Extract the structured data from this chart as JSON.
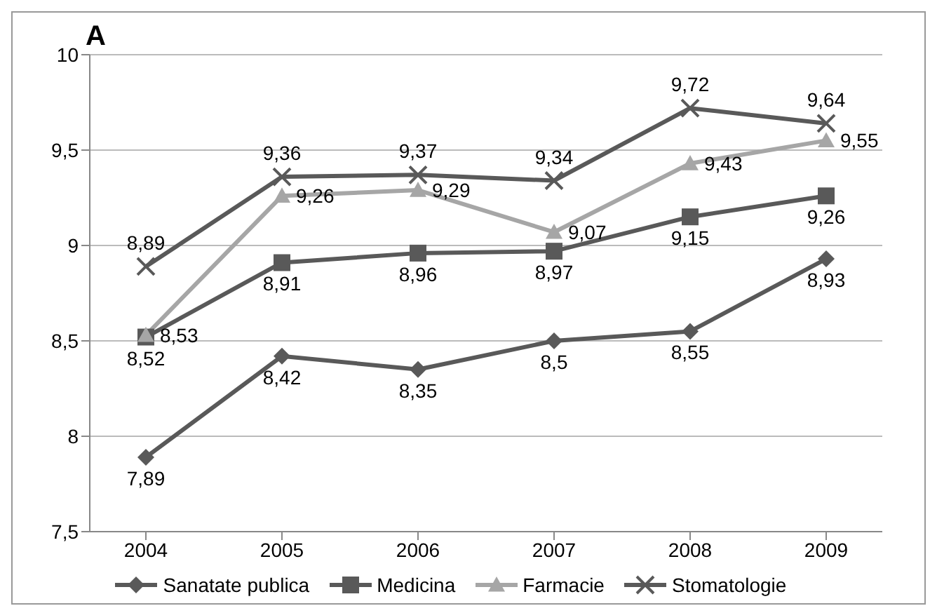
{
  "chart_data": {
    "type": "line",
    "title": "A",
    "categories": [
      "2004",
      "2005",
      "2006",
      "2007",
      "2008",
      "2009"
    ],
    "series": [
      {
        "name": "Sanatate publica",
        "color": "#595959",
        "marker": "diamond",
        "values": [
          7.89,
          8.42,
          8.35,
          8.5,
          8.55,
          8.93
        ],
        "value_labels": [
          "7,89",
          "8,42",
          "8,35",
          "8,5",
          "8,55",
          "8,93"
        ]
      },
      {
        "name": "Medicina",
        "color": "#595959",
        "marker": "square",
        "values": [
          8.52,
          8.91,
          8.96,
          8.97,
          9.15,
          9.26
        ],
        "value_labels": [
          "8,52",
          "8,91",
          "8,96",
          "8,97",
          "9,15",
          "9,26"
        ]
      },
      {
        "name": "Farmacie",
        "color": "#a6a6a6",
        "marker": "triangle",
        "values": [
          8.53,
          9.26,
          9.29,
          9.07,
          9.43,
          9.55
        ],
        "value_labels": [
          "8,53",
          "9,26",
          "9,29",
          "9,07",
          "9,43",
          "9,55"
        ]
      },
      {
        "name": "Stomatologie",
        "color": "#595959",
        "marker": "cross",
        "values": [
          8.89,
          9.36,
          9.37,
          9.34,
          9.72,
          9.64
        ],
        "value_labels": [
          "8,89",
          "9,36",
          "9,37",
          "9,34",
          "9,72",
          "9,64"
        ]
      }
    ],
    "ylim": [
      7.5,
      10
    ],
    "yticks": [
      {
        "value": 7.5,
        "label": "7,5"
      },
      8,
      {
        "value": 8.5,
        "label": "8,5"
      },
      9,
      {
        "value": 9.5,
        "label": "9,5"
      },
      10
    ],
    "grid": "y",
    "legend": "bottom",
    "line_style": "solid"
  }
}
